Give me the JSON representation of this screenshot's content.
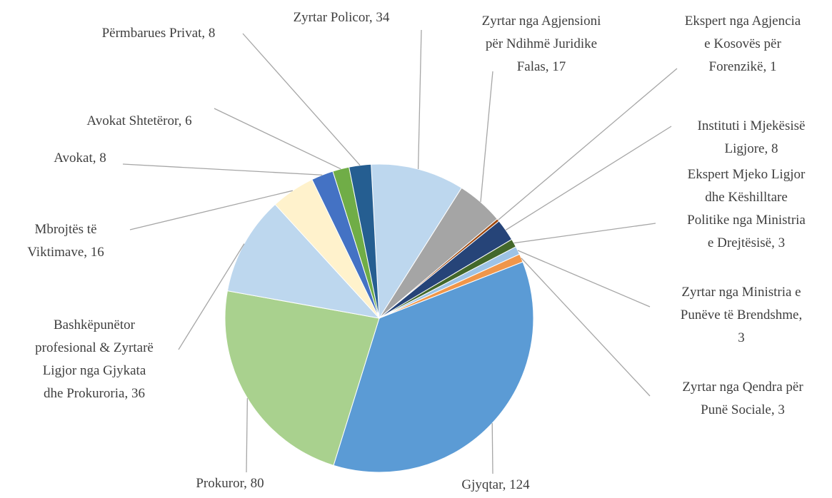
{
  "chart_data": {
    "type": "pie",
    "labels": [
      "Zyrtar Policor, 34",
      "Zyrtar nga Agjensioni\npër Ndihmë Juridike\nFalas, 17",
      "Ekspert nga Agjencia\ne Kosovës për\nForenzikë, 1",
      "Instituti i Mjekësisë\nLigjore, 8",
      "Ekspert Mjeko Ligjor\ndhe Këshilltare\nPolitike nga Ministria\ne Drejtësisë, 3",
      "Zyrtar nga Ministria e\nPunëve të Brendshme,\n3",
      "Zyrtar nga Qendra për\nPunë Sociale, 3",
      "Gjyqtar, 124",
      "Prokuror, 80",
      "Bashkëpunëtor\nprofesional & Zyrtarë\nLigjor nga Gjykata\ndhe Prokuroria, 36",
      "Mbrojtës të\nViktimave, 16",
      "Avokat, 8",
      "Avokat Shtetëror, 6",
      "Përmbarues Privat, 8"
    ],
    "values": [
      34,
      17,
      1,
      8,
      3,
      3,
      3,
      124,
      80,
      36,
      16,
      8,
      6,
      8
    ],
    "colors": [
      "#bdd7ee",
      "#a5a5a5",
      "#9e480e",
      "#264478",
      "#43682b",
      "#9dc3e6",
      "#f0964a",
      "#5b9bd5",
      "#a9d18e",
      "#bdd7ee",
      "#fff2cc",
      "#4472c4",
      "#70ad47",
      "#255e91"
    ]
  }
}
